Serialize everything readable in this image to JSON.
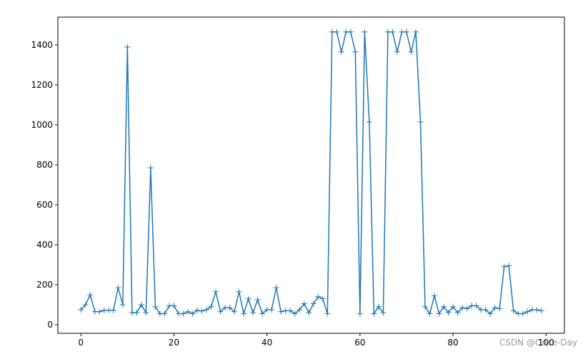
{
  "chart_data": {
    "type": "line",
    "color": "#1f77b4",
    "marker": "+",
    "x": [
      0,
      1,
      2,
      3,
      4,
      5,
      6,
      7,
      8,
      9,
      10,
      11,
      12,
      13,
      14,
      15,
      16,
      17,
      18,
      19,
      20,
      21,
      22,
      23,
      24,
      25,
      26,
      27,
      28,
      29,
      30,
      31,
      32,
      33,
      34,
      35,
      36,
      37,
      38,
      39,
      40,
      41,
      42,
      43,
      44,
      45,
      46,
      47,
      48,
      49,
      50,
      51,
      52,
      53,
      54,
      55,
      56,
      57,
      58,
      59,
      60,
      61,
      62,
      63,
      64,
      65,
      66,
      67,
      68,
      69,
      70,
      71,
      72,
      73,
      74,
      75,
      76,
      77,
      78,
      79,
      80,
      81,
      82,
      83,
      84,
      85,
      86,
      87,
      88,
      89,
      90,
      91,
      92,
      93,
      94,
      95,
      96,
      97,
      98,
      99
    ],
    "values": [
      75,
      100,
      150,
      65,
      65,
      72,
      72,
      72,
      185,
      100,
      1390,
      60,
      60,
      100,
      60,
      785,
      90,
      55,
      55,
      95,
      95,
      55,
      55,
      65,
      55,
      72,
      68,
      75,
      90,
      165,
      65,
      85,
      85,
      65,
      165,
      55,
      130,
      60,
      125,
      55,
      75,
      75,
      185,
      65,
      70,
      70,
      55,
      75,
      105,
      60,
      105,
      140,
      130,
      55,
      1465,
      1465,
      1365,
      1465,
      1465,
      1365,
      55,
      1465,
      1015,
      55,
      90,
      60,
      1465,
      1465,
      1365,
      1465,
      1465,
      1365,
      1465,
      1015,
      90,
      55,
      145,
      55,
      90,
      60,
      90,
      60,
      85,
      80,
      95,
      95,
      75,
      75,
      55,
      85,
      80,
      290,
      295,
      70,
      55,
      55,
      65,
      75,
      75,
      70
    ],
    "xlim": [
      -4.95,
      103.95
    ],
    "ylim": [
      -43,
      1539
    ],
    "xticks": [
      0,
      20,
      40,
      60,
      80,
      100
    ],
    "yticks": [
      0,
      200,
      400,
      600,
      800,
      1000,
      1200,
      1400
    ],
    "watermark": "CSDN @Once-Day"
  }
}
